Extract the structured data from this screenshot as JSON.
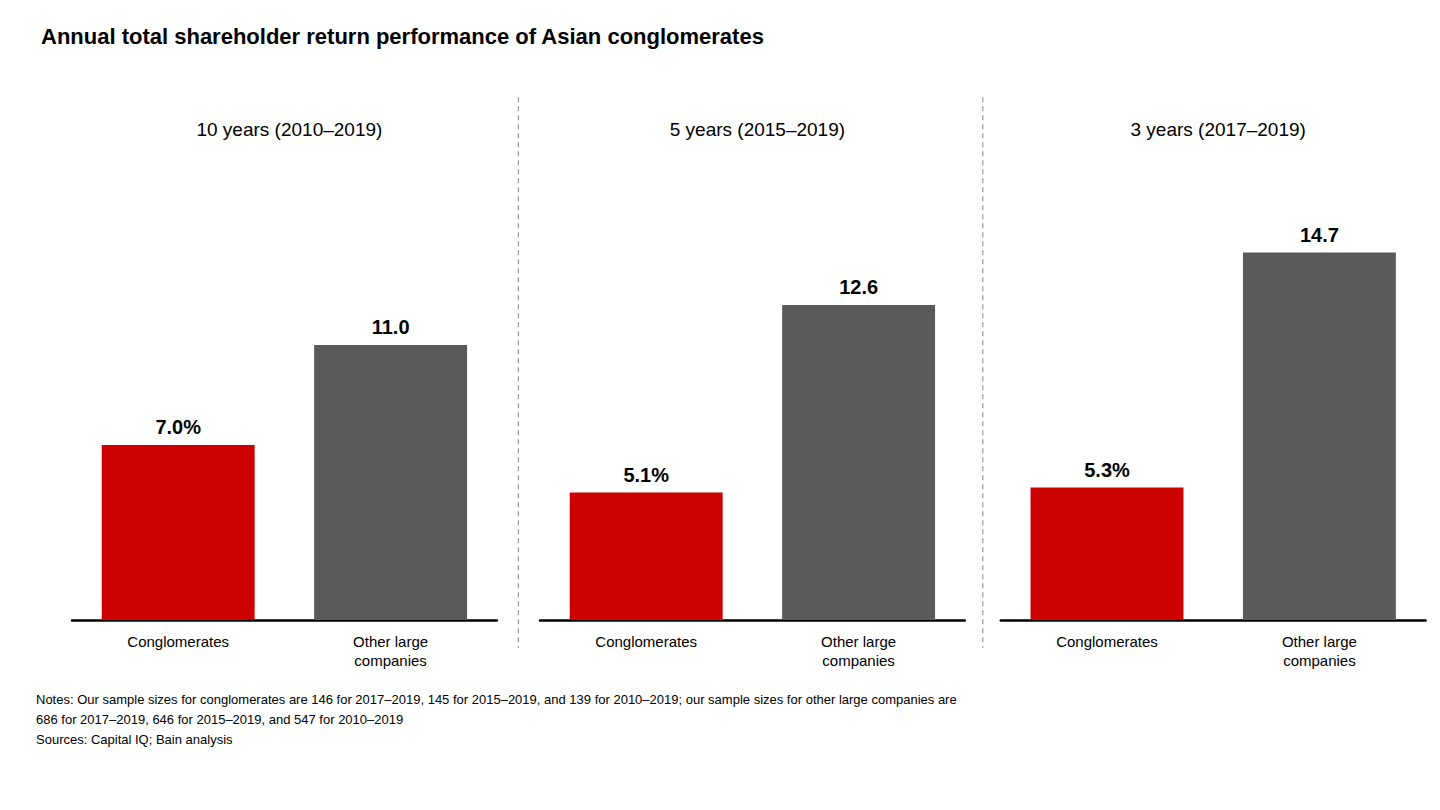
{
  "title": "Annual total shareholder return performance of Asian conglomerates",
  "annotations": [
    "Notes: Our sample sizes for conglomerates are 146 for 2017–2019, 145 for 2015–2019, and 139 for 2010–2019; our sample sizes for other large companies are",
    "686 for 2017–2019, 646 for 2015–2019, and 547 for 2010–2019",
    "Sources: Capital IQ; Bain analysis"
  ],
  "chart_data": [
    {
      "type": "bar",
      "subtitle": "10 years (2010–2019)",
      "categories": [
        "Conglomerates",
        "Other large\ncompanies"
      ],
      "values": [
        7.0,
        11.0
      ],
      "value_labels": [
        "7.0%",
        "11.0"
      ],
      "colors": [
        "#cc0000",
        "#5a5a5a"
      ],
      "data_labels": true,
      "ylim": [
        0,
        18
      ],
      "tick_labels": "x",
      "grid": false
    },
    {
      "type": "bar",
      "subtitle": "5 years (2015–2019)",
      "categories": [
        "Conglomerates",
        "Other large\ncompanies"
      ],
      "values": [
        5.1,
        12.6
      ],
      "value_labels": [
        "5.1%",
        "12.6"
      ],
      "colors": [
        "#cc0000",
        "#5a5a5a"
      ],
      "data_labels": true,
      "ylim": [
        0,
        18
      ],
      "tick_labels": "x",
      "grid": false
    },
    {
      "type": "bar",
      "subtitle": "3 years (2017–2019)",
      "categories": [
        "Conglomerates",
        "Other large\ncompanies"
      ],
      "values": [
        5.3,
        14.7
      ],
      "value_labels": [
        "5.3%",
        "14.7"
      ],
      "colors": [
        "#cc0000",
        "#5a5a5a"
      ],
      "data_labels": true,
      "ylim": [
        0,
        18
      ],
      "tick_labels": "x",
      "grid": false
    }
  ]
}
